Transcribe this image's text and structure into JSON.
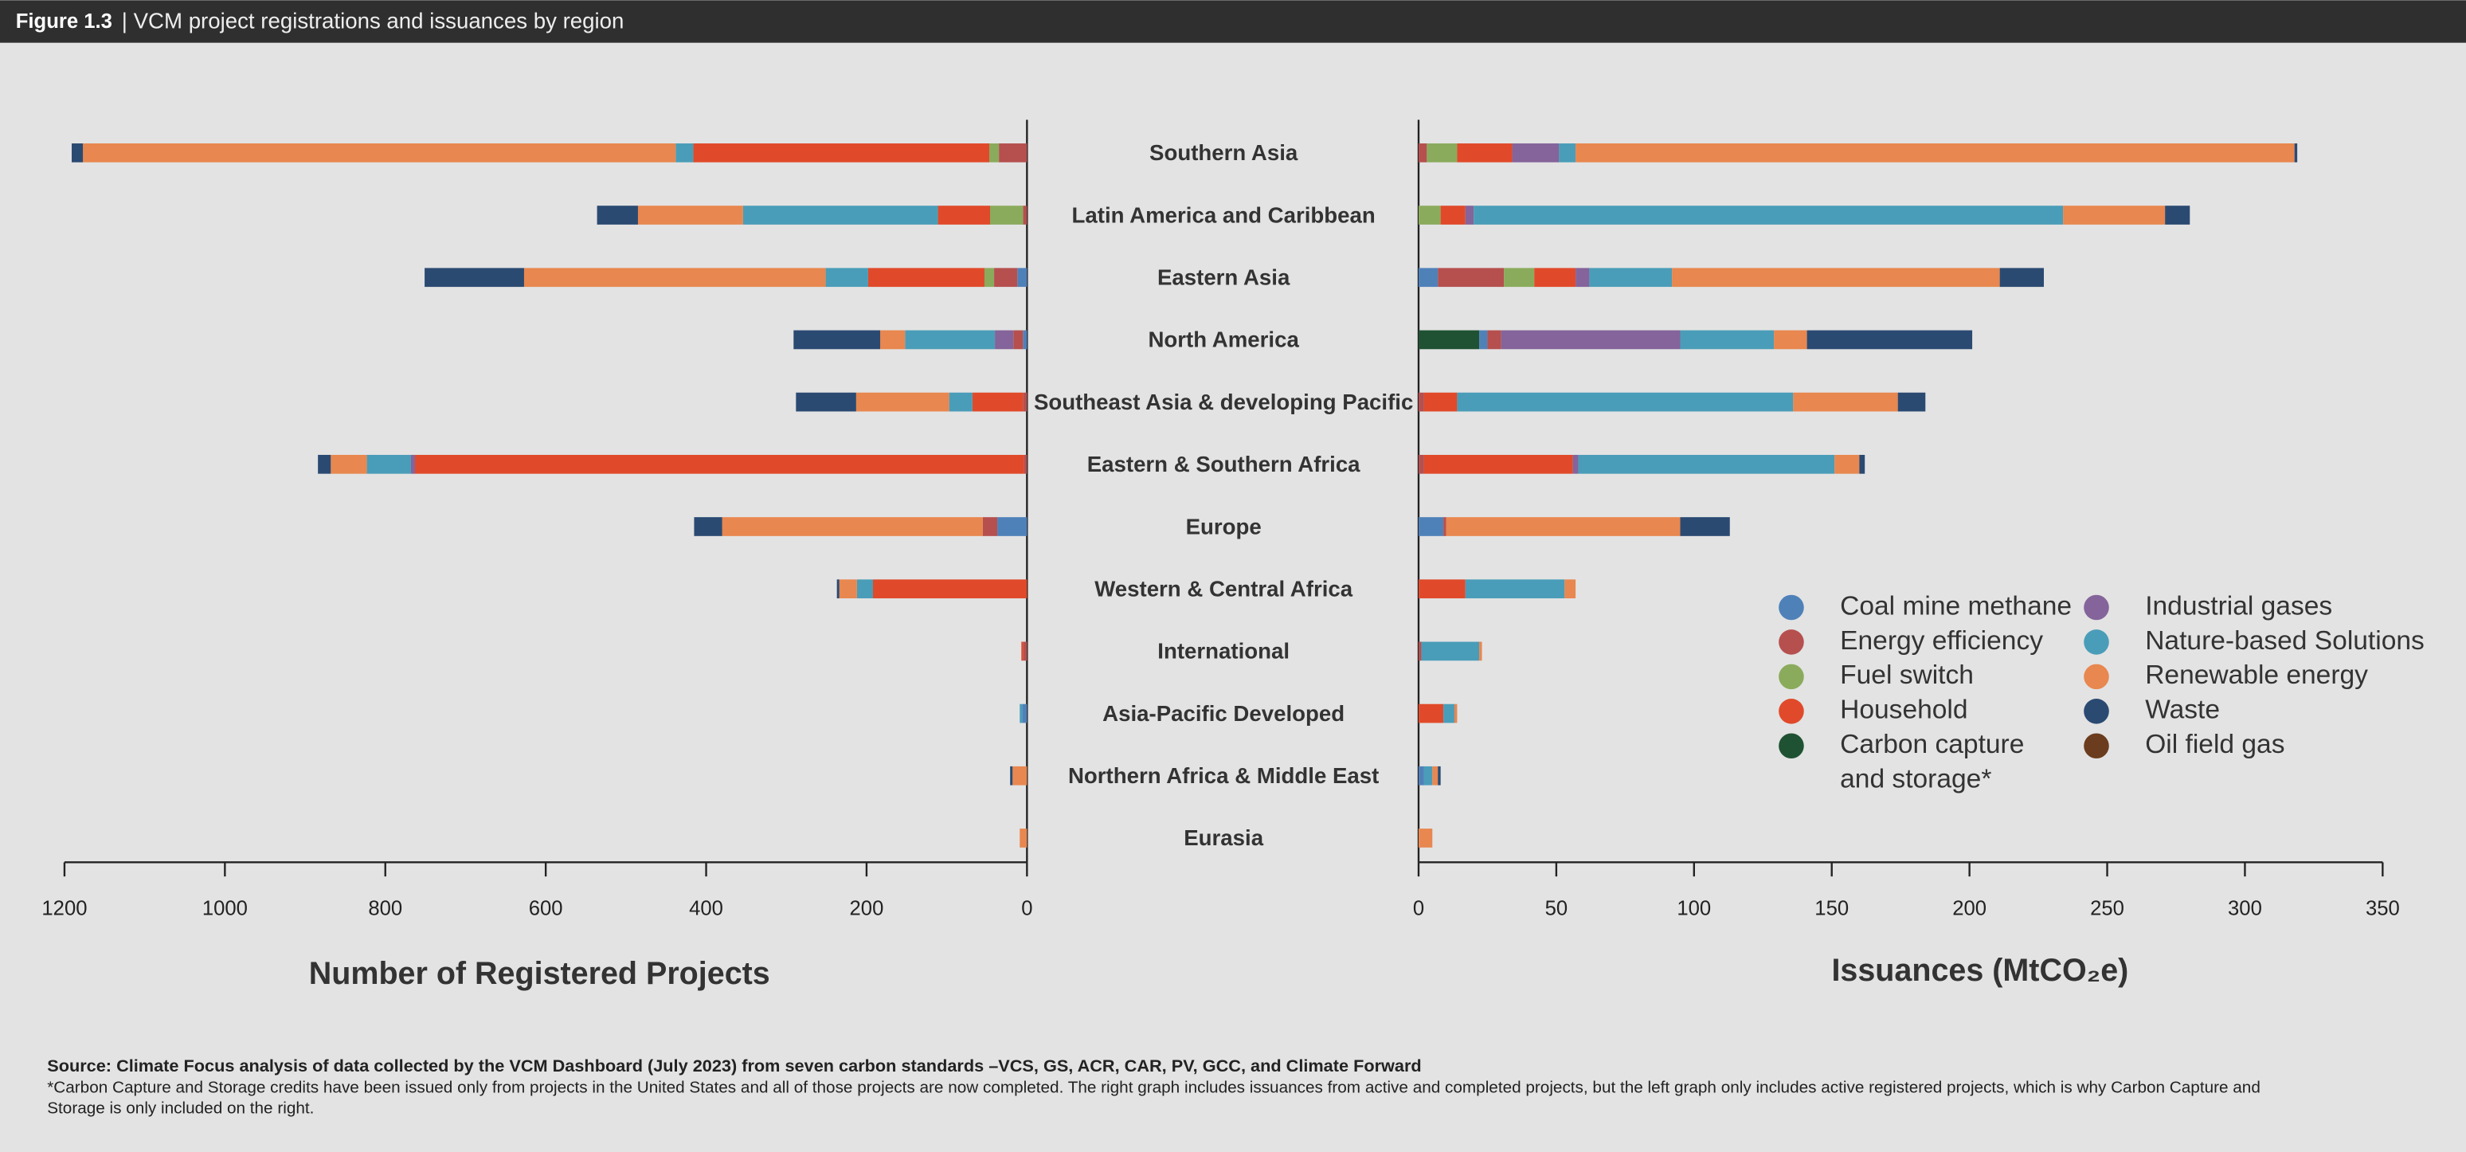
{
  "chart_data": {
    "type": "bar",
    "title": "Figure 1.3",
    "subtitle": "| VCM project registrations and issuances by region",
    "categories": [
      "Southern Asia",
      "Latin America and Caribbean",
      "Eastern Asia",
      "North America",
      "Southeast Asia & developing Pacific",
      "Eastern & Southern Africa",
      "Europe",
      "Western & Central Africa",
      "International",
      "Asia-Pacific Developed",
      "Northern Africa & Middle East",
      "Eurasia"
    ],
    "xlabel": "Number of Registered Projects",
    "xlim": [
      0,
      1200
    ],
    "xticks": [
      0,
      200,
      400,
      600,
      800,
      1000,
      1200
    ],
    "x2label": "Issuances (MtCO₂e)",
    "x2lim": [
      0,
      350
    ],
    "x2ticks": [
      0,
      50,
      100,
      150,
      200,
      250,
      300,
      350
    ],
    "series": [
      {
        "name": "Carbon capture and storage*",
        "color": "#1f5232",
        "values": [
          0,
          0,
          0,
          0,
          0,
          0,
          0,
          0,
          0,
          0,
          0,
          0
        ],
        "values2": [
          0,
          0,
          0,
          22,
          0,
          0,
          0,
          0,
          0,
          0,
          0,
          0
        ]
      },
      {
        "name": "Coal mine methane",
        "color": "#4f81b9",
        "values": [
          0,
          0,
          12,
          5,
          0,
          0,
          37,
          0,
          0,
          6,
          0,
          0
        ],
        "values2": [
          0,
          0,
          7,
          3,
          0,
          0,
          9,
          0,
          0,
          0,
          2,
          0
        ]
      },
      {
        "name": "Energy efficiency",
        "color": "#b5504f",
        "values": [
          35,
          5,
          29,
          12,
          5,
          4,
          18,
          0,
          5,
          0,
          0,
          0
        ],
        "values2": [
          3,
          0,
          24,
          5,
          2,
          2,
          1,
          0,
          1,
          0,
          0,
          0
        ]
      },
      {
        "name": "Fuel switch",
        "color": "#8aab5c",
        "values": [
          12,
          41,
          12,
          0,
          0,
          0,
          0,
          0,
          0,
          0,
          0,
          0
        ],
        "values2": [
          11,
          8,
          11,
          0,
          0,
          0,
          0,
          0,
          0,
          0,
          0,
          0
        ]
      },
      {
        "name": "Household",
        "color": "#e04a2a",
        "values": [
          369,
          65,
          145,
          0,
          63,
          759,
          0,
          192,
          2,
          0,
          0,
          0
        ],
        "values2": [
          20,
          9,
          15,
          0,
          12,
          54,
          0,
          17,
          0,
          9,
          0,
          0
        ]
      },
      {
        "name": "Industrial gases",
        "color": "#84649a",
        "values": [
          0,
          0,
          0,
          23,
          0,
          5,
          0,
          0,
          0,
          0,
          0,
          0
        ],
        "values2": [
          17,
          3,
          5,
          65,
          0,
          2,
          0,
          0,
          0,
          0,
          0,
          0
        ]
      },
      {
        "name": "Nature-based Solutions",
        "color": "#4a9db8",
        "values": [
          22,
          243,
          53,
          112,
          29,
          55,
          0,
          20,
          0,
          3,
          0,
          0
        ],
        "values2": [
          6,
          214,
          30,
          34,
          122,
          93,
          0,
          36,
          21,
          4,
          3,
          0
        ]
      },
      {
        "name": "Renewable energy",
        "color": "#e8874f",
        "values": [
          739,
          131,
          376,
          31,
          116,
          45,
          325,
          22,
          0,
          0,
          18,
          9
        ],
        "values2": [
          261,
          37,
          119,
          12,
          38,
          9,
          85,
          4,
          1,
          1,
          2,
          5
        ]
      },
      {
        "name": "Waste",
        "color": "#2b4a72",
        "values": [
          14,
          51,
          124,
          108,
          75,
          16,
          35,
          3,
          0,
          0,
          3,
          0
        ],
        "values2": [
          1,
          9,
          16,
          60,
          10,
          2,
          18,
          0,
          0,
          0,
          1,
          0
        ]
      },
      {
        "name": "Oil field gas",
        "color": "#6b3d1e",
        "values": [
          0,
          0,
          0,
          0,
          0,
          0,
          0,
          0,
          0,
          0,
          0,
          0
        ],
        "values2": [
          0,
          0,
          0,
          0,
          0,
          0,
          0,
          0,
          0,
          0,
          0,
          0
        ]
      }
    ],
    "source": "Source: Climate Focus analysis of data collected by the VCM Dashboard (July 2023) from seven carbon standards –VCS, GS, ACR, CAR, PV, GCC, and Climate Forward",
    "footnote": "*Carbon Capture and Storage credits have been issued only from projects in the United States and all of those projects are now completed. The right graph includes issuances from active and completed projects, but the left graph only includes active registered projects, which is why Carbon Capture and Storage is only included on the right."
  }
}
